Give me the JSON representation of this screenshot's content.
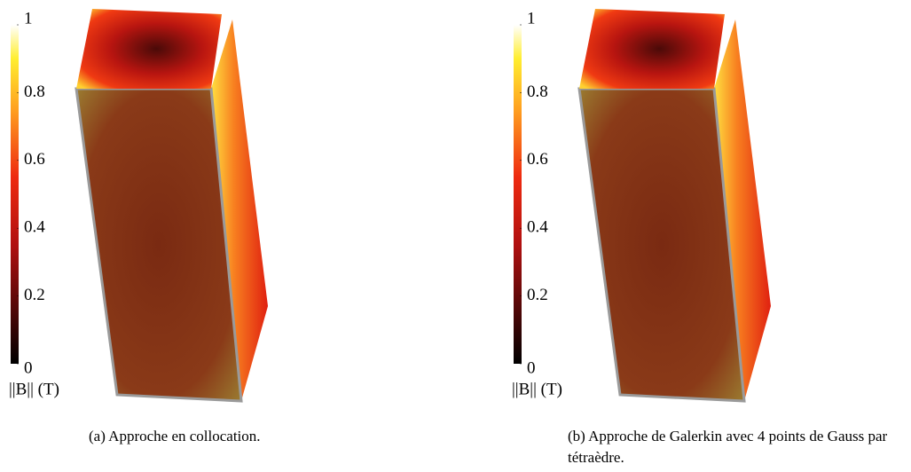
{
  "panels": [
    {
      "colorbar": {
        "ticks": [
          0,
          0.2,
          0.4,
          0.6,
          0.8,
          1
        ],
        "label": "||B|| (T)"
      },
      "caption": "(a) Approche en collocation."
    },
    {
      "colorbar": {
        "ticks": [
          0,
          0.2,
          0.4,
          0.6,
          0.8,
          1
        ],
        "label": "||B|| (T)"
      },
      "caption": "(b) Approche de Galerkin avec 4 points de Gauss par tétraèdre."
    }
  ]
}
